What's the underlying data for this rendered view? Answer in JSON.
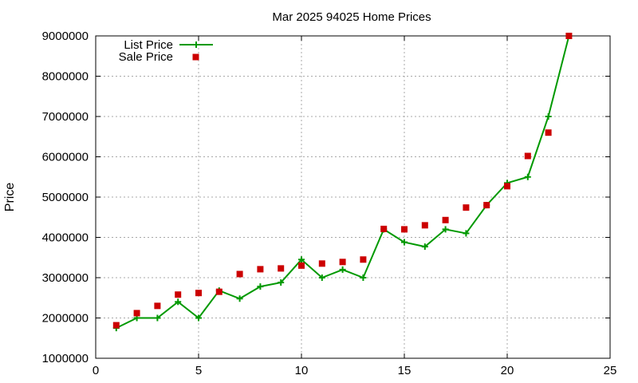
{
  "chart_data": {
    "type": "line",
    "title": "Mar 2025 94025 Home Prices",
    "xlabel": "",
    "ylabel": "Price",
    "xlim": [
      0,
      25
    ],
    "ylim": [
      1000000,
      9000000
    ],
    "xticks": [
      0,
      5,
      10,
      15,
      20,
      25
    ],
    "xtick_labels": [
      "0",
      "5",
      "10",
      "15",
      "20",
      "25"
    ],
    "yticks": [
      1000000,
      2000000,
      3000000,
      4000000,
      5000000,
      6000000,
      7000000,
      8000000,
      9000000
    ],
    "ytick_labels": [
      "1000000",
      "2000000",
      "3000000",
      "4000000",
      "5000000",
      "6000000",
      "7000000",
      "8000000",
      "9000000"
    ],
    "grid": true,
    "legend_position": "top-left",
    "series": [
      {
        "name": "List Price",
        "style": "line-with-plus-markers",
        "color": "#009900",
        "x": [
          1,
          2,
          3,
          4,
          5,
          6,
          7,
          8,
          9,
          10,
          11,
          12,
          13,
          14,
          15,
          16,
          17,
          18,
          19,
          20,
          21,
          22,
          23
        ],
        "values": [
          1750000,
          2000000,
          2000000,
          2400000,
          2000000,
          2680000,
          2480000,
          2780000,
          2880000,
          3450000,
          3000000,
          3200000,
          3000000,
          4200000,
          3880000,
          3770000,
          4200000,
          4100000,
          4800000,
          5350000,
          5500000,
          7000000,
          9000000
        ]
      },
      {
        "name": "Sale Price",
        "style": "square-markers",
        "color": "#cc0000",
        "x": [
          1,
          2,
          3,
          4,
          5,
          6,
          7,
          8,
          9,
          10,
          11,
          12,
          13,
          14,
          15,
          16,
          17,
          18,
          19,
          20,
          21,
          22,
          23
        ],
        "values": [
          1820000,
          2120000,
          2300000,
          2580000,
          2620000,
          2650000,
          3090000,
          3210000,
          3230000,
          3300000,
          3350000,
          3390000,
          3450000,
          4210000,
          4200000,
          4300000,
          4430000,
          4740000,
          4800000,
          5270000,
          6020000,
          6600000,
          9000000
        ]
      }
    ]
  }
}
